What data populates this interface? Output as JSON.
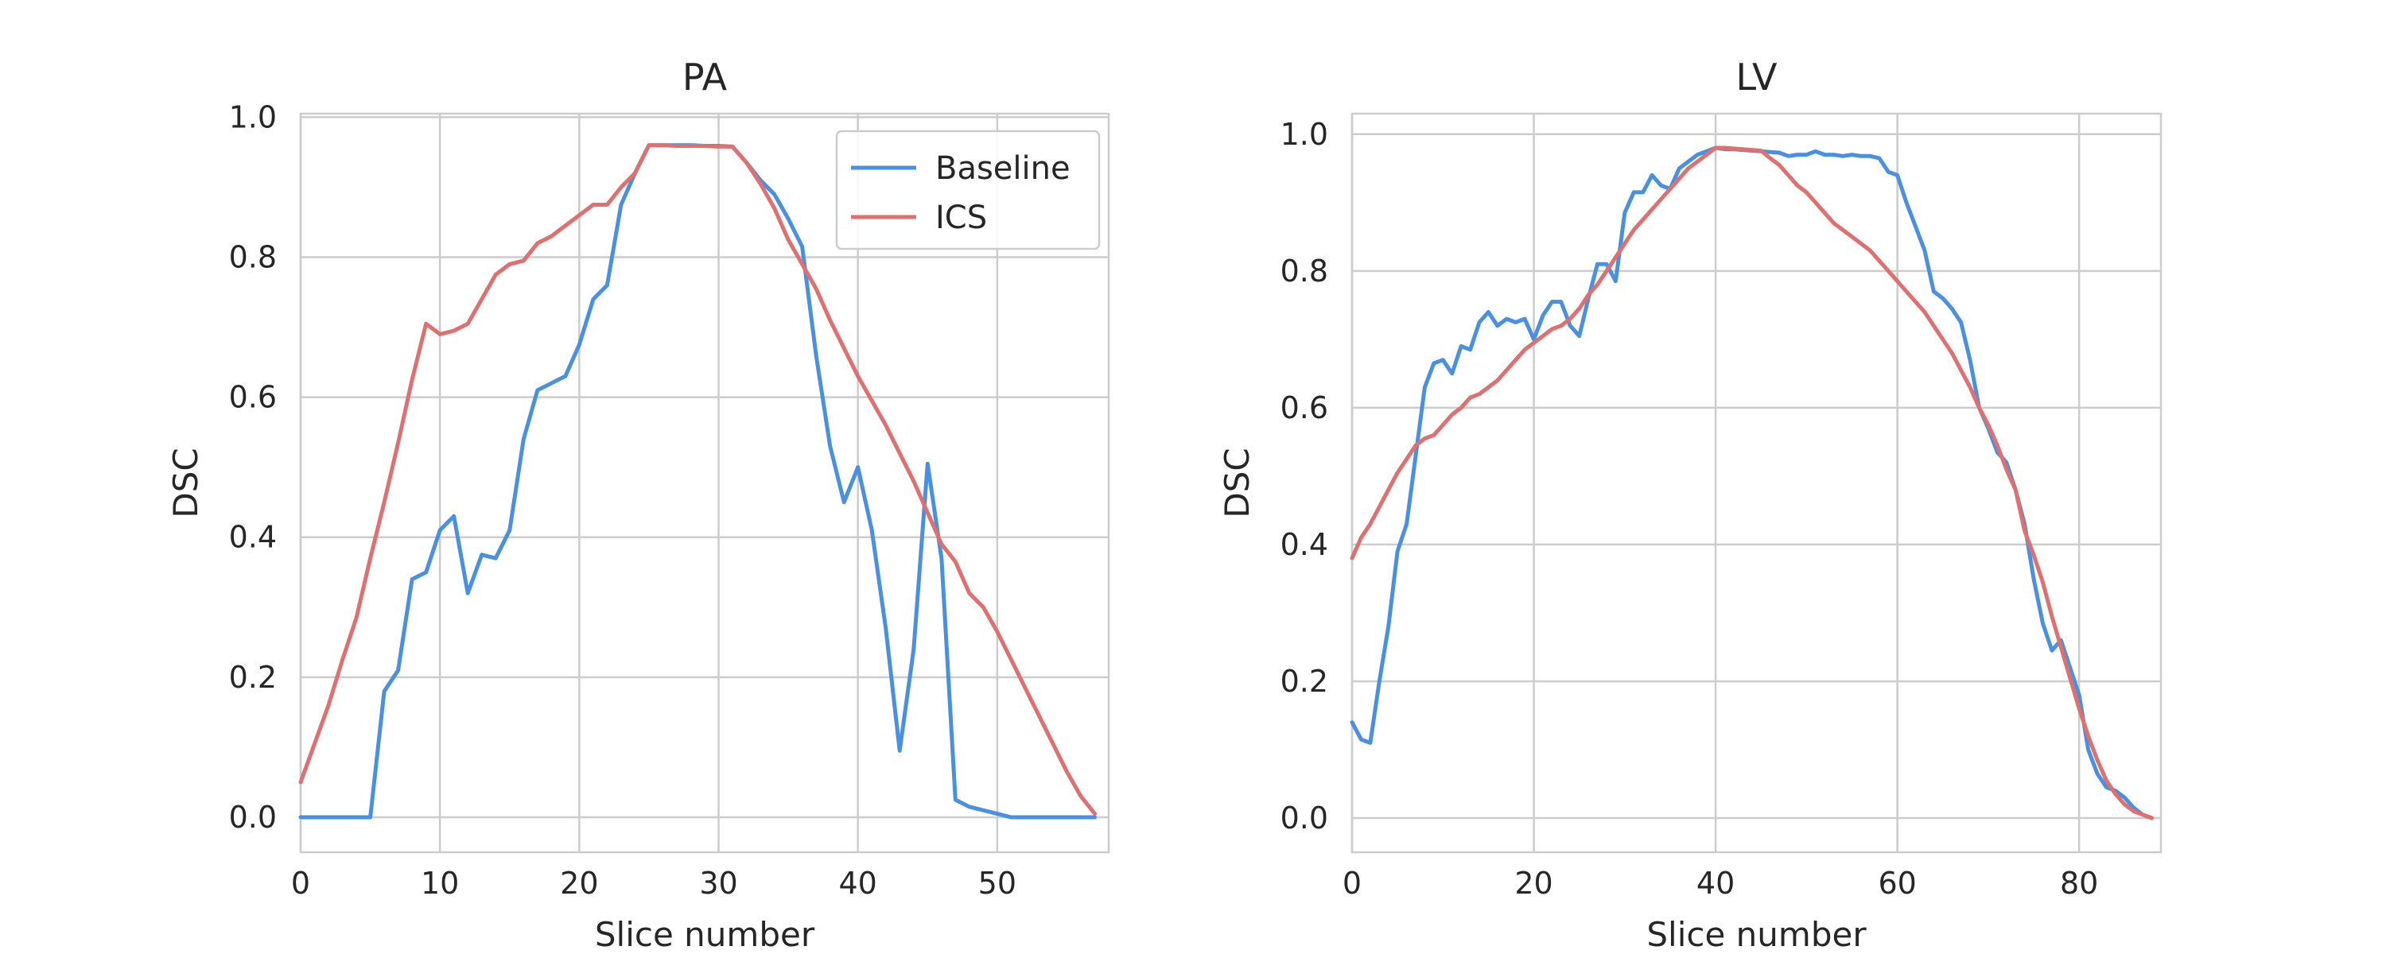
{
  "chart_data": [
    {
      "type": "line",
      "title": "PA",
      "xlabel": "Slice number",
      "ylabel": "DSC",
      "xlim": [
        0,
        58
      ],
      "ylim": [
        -0.05,
        1.005
      ],
      "xticks": [
        0,
        10,
        20,
        30,
        40,
        50
      ],
      "yticks": [
        0.0,
        0.2,
        0.4,
        0.6,
        0.8,
        1.0
      ],
      "grid": true,
      "legend": {
        "placement": "top-right",
        "entries": [
          "Baseline",
          "ICS"
        ]
      },
      "series": [
        {
          "name": "Baseline",
          "color": "#4a90e2",
          "x": [
            0,
            1,
            2,
            3,
            4,
            5,
            6,
            7,
            8,
            9,
            10,
            11,
            12,
            13,
            14,
            15,
            16,
            17,
            18,
            19,
            20,
            21,
            22,
            23,
            24,
            25,
            26,
            27,
            28,
            29,
            30,
            31,
            32,
            33,
            34,
            35,
            36,
            37,
            38,
            39,
            40,
            41,
            42,
            43,
            44,
            45,
            46,
            47,
            48,
            49,
            50,
            51,
            52,
            53,
            54,
            55,
            56,
            57
          ],
          "values": [
            0,
            0,
            0,
            0,
            0,
            0,
            0.18,
            0.21,
            0.34,
            0.35,
            0.41,
            0.43,
            0.32,
            0.375,
            0.37,
            0.41,
            0.54,
            0.61,
            0.62,
            0.63,
            0.675,
            0.74,
            0.76,
            0.875,
            0.92,
            0.96,
            0.96,
            0.96,
            0.96,
            0.959,
            0.959,
            0.958,
            0.935,
            0.91,
            0.89,
            0.855,
            0.815,
            0.66,
            0.53,
            0.45,
            0.5,
            0.41,
            0.27,
            0.095,
            0.24,
            0.505,
            0.37,
            0.025,
            0.015,
            0.01,
            0.005,
            0,
            0,
            0,
            0,
            0,
            0,
            0
          ]
        },
        {
          "name": "ICS",
          "color": "#e07070",
          "x": [
            0,
            1,
            2,
            3,
            4,
            5,
            6,
            7,
            8,
            9,
            10,
            11,
            12,
            13,
            14,
            15,
            16,
            17,
            18,
            19,
            20,
            21,
            22,
            23,
            24,
            25,
            26,
            27,
            28,
            29,
            30,
            31,
            32,
            33,
            34,
            35,
            36,
            37,
            38,
            39,
            40,
            41,
            42,
            43,
            44,
            45,
            46,
            47,
            48,
            49,
            50,
            51,
            52,
            53,
            54,
            55,
            56,
            57
          ],
          "values": [
            0.05,
            0.105,
            0.16,
            0.225,
            0.285,
            0.37,
            0.45,
            0.535,
            0.625,
            0.705,
            0.69,
            0.695,
            0.705,
            0.74,
            0.775,
            0.79,
            0.795,
            0.82,
            0.83,
            0.845,
            0.86,
            0.875,
            0.875,
            0.9,
            0.92,
            0.96,
            0.96,
            0.959,
            0.959,
            0.959,
            0.958,
            0.958,
            0.935,
            0.905,
            0.87,
            0.825,
            0.79,
            0.755,
            0.71,
            0.67,
            0.63,
            0.595,
            0.56,
            0.52,
            0.48,
            0.435,
            0.39,
            0.365,
            0.32,
            0.3,
            0.265,
            0.225,
            0.185,
            0.145,
            0.105,
            0.065,
            0.03,
            0.005
          ]
        }
      ]
    },
    {
      "type": "line",
      "title": "LV",
      "xlabel": "Slice number",
      "ylabel": "DSC",
      "xlim": [
        0,
        89
      ],
      "ylim": [
        -0.05,
        1.03
      ],
      "xticks": [
        0,
        20,
        40,
        60,
        80
      ],
      "yticks": [
        0.0,
        0.2,
        0.4,
        0.6,
        0.8,
        1.0
      ],
      "grid": true,
      "series": [
        {
          "name": "Baseline",
          "color": "#4a90e2",
          "x": [
            0,
            1,
            2,
            3,
            4,
            5,
            6,
            7,
            8,
            9,
            10,
            11,
            12,
            13,
            14,
            15,
            16,
            17,
            18,
            19,
            20,
            21,
            22,
            23,
            24,
            25,
            26,
            27,
            28,
            29,
            30,
            31,
            32,
            33,
            34,
            35,
            36,
            37,
            38,
            39,
            40,
            41,
            42,
            43,
            44,
            45,
            46,
            47,
            48,
            49,
            50,
            51,
            52,
            53,
            54,
            55,
            56,
            57,
            58,
            59,
            60,
            61,
            62,
            63,
            64,
            65,
            66,
            67,
            68,
            69,
            70,
            71,
            72,
            73,
            74,
            75,
            76,
            77,
            78,
            79,
            80,
            81,
            82,
            83,
            84,
            85,
            86,
            87,
            88
          ],
          "values": [
            0.14,
            0.115,
            0.11,
            0.2,
            0.28,
            0.39,
            0.43,
            0.53,
            0.63,
            0.665,
            0.67,
            0.65,
            0.69,
            0.685,
            0.725,
            0.74,
            0.72,
            0.73,
            0.725,
            0.73,
            0.7,
            0.735,
            0.755,
            0.755,
            0.72,
            0.705,
            0.76,
            0.81,
            0.81,
            0.785,
            0.885,
            0.915,
            0.915,
            0.94,
            0.925,
            0.92,
            0.95,
            0.96,
            0.97,
            0.975,
            0.98,
            0.978,
            0.978,
            0.977,
            0.976,
            0.975,
            0.974,
            0.973,
            0.968,
            0.97,
            0.97,
            0.975,
            0.97,
            0.97,
            0.968,
            0.97,
            0.968,
            0.968,
            0.965,
            0.945,
            0.94,
            0.9,
            0.865,
            0.83,
            0.77,
            0.76,
            0.745,
            0.725,
            0.67,
            0.6,
            0.57,
            0.535,
            0.52,
            0.48,
            0.43,
            0.35,
            0.285,
            0.245,
            0.26,
            0.22,
            0.18,
            0.1,
            0.065,
            0.045,
            0.04,
            0.03,
            0.015,
            0.005,
            0.0
          ]
        },
        {
          "name": "ICS",
          "color": "#e07070",
          "x": [
            0,
            1,
            2,
            3,
            4,
            5,
            6,
            7,
            8,
            9,
            10,
            11,
            12,
            13,
            14,
            15,
            16,
            17,
            18,
            19,
            20,
            21,
            22,
            23,
            24,
            25,
            26,
            27,
            28,
            29,
            30,
            31,
            32,
            33,
            34,
            35,
            36,
            37,
            38,
            39,
            40,
            41,
            42,
            43,
            44,
            45,
            46,
            47,
            48,
            49,
            50,
            51,
            52,
            53,
            54,
            55,
            56,
            57,
            58,
            59,
            60,
            61,
            62,
            63,
            64,
            65,
            66,
            67,
            68,
            69,
            70,
            71,
            72,
            73,
            74,
            75,
            76,
            77,
            78,
            79,
            80,
            81,
            82,
            83,
            84,
            85,
            86,
            87,
            88
          ],
          "values": [
            0.38,
            0.41,
            0.43,
            0.455,
            0.48,
            0.505,
            0.525,
            0.545,
            0.555,
            0.56,
            0.575,
            0.59,
            0.6,
            0.615,
            0.62,
            0.63,
            0.64,
            0.655,
            0.67,
            0.685,
            0.695,
            0.705,
            0.715,
            0.72,
            0.73,
            0.745,
            0.765,
            0.78,
            0.8,
            0.82,
            0.84,
            0.86,
            0.875,
            0.89,
            0.905,
            0.92,
            0.935,
            0.95,
            0.96,
            0.97,
            0.98,
            0.98,
            0.979,
            0.978,
            0.977,
            0.976,
            0.965,
            0.955,
            0.94,
            0.925,
            0.915,
            0.9,
            0.885,
            0.87,
            0.86,
            0.85,
            0.84,
            0.83,
            0.815,
            0.8,
            0.785,
            0.77,
            0.755,
            0.74,
            0.72,
            0.7,
            0.68,
            0.655,
            0.63,
            0.6,
            0.575,
            0.545,
            0.51,
            0.48,
            0.42,
            0.385,
            0.345,
            0.295,
            0.25,
            0.205,
            0.16,
            0.12,
            0.085,
            0.055,
            0.035,
            0.02,
            0.01,
            0.005,
            0.0
          ]
        }
      ]
    }
  ]
}
